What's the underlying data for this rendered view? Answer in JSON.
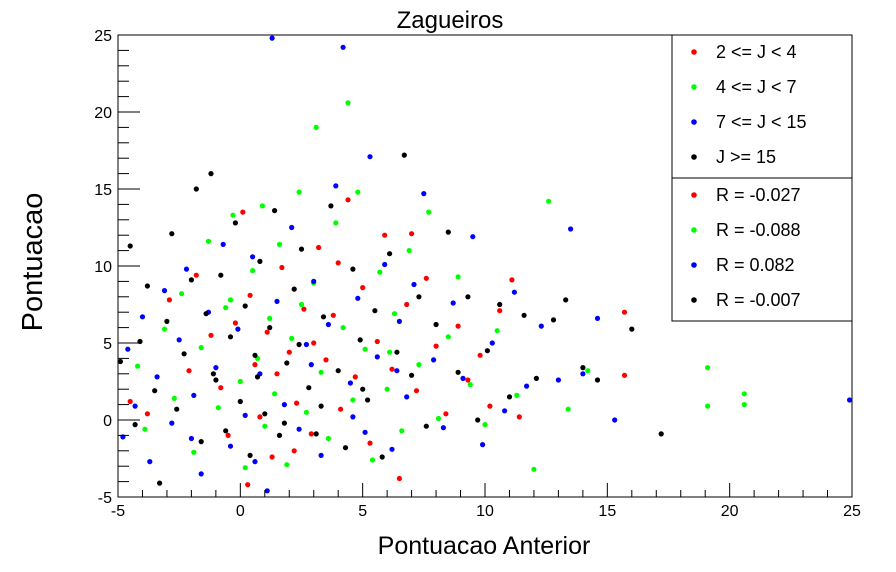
{
  "chart_data": {
    "type": "scatter",
    "title": "Zagueiros",
    "xlabel": "Pontuacao Anterior",
    "ylabel": "Pontuacao",
    "xlim": [
      -5,
      25
    ],
    "ylim": [
      -5,
      25
    ],
    "x_ticks": [
      -5,
      0,
      5,
      10,
      15,
      20,
      25
    ],
    "y_ticks": [
      -5,
      0,
      5,
      10,
      15,
      20,
      25
    ],
    "grid": false,
    "legend_position": "top-right",
    "series": [
      {
        "name": "2 <= J < 4",
        "color": "#ff0000",
        "points": [
          [
            -4.5,
            1.2
          ],
          [
            -3.8,
            0.4
          ],
          [
            -2.9,
            7.8
          ],
          [
            -2.1,
            3.2
          ],
          [
            -1.8,
            9.4
          ],
          [
            -1.2,
            5.5
          ],
          [
            -0.8,
            2.1
          ],
          [
            -0.5,
            -1.0
          ],
          [
            -0.2,
            6.3
          ],
          [
            0.1,
            13.5
          ],
          [
            0.3,
            -4.2
          ],
          [
            0.4,
            8.1
          ],
          [
            0.6,
            3.6
          ],
          [
            0.8,
            0.2
          ],
          [
            1.1,
            5.7
          ],
          [
            1.3,
            -2.4
          ],
          [
            1.7,
            9.9
          ],
          [
            2.0,
            4.4
          ],
          [
            2.3,
            1.1
          ],
          [
            2.6,
            7.2
          ],
          [
            2.9,
            -0.9
          ],
          [
            3.2,
            11.2
          ],
          [
            3.5,
            3.9
          ],
          [
            3.8,
            6.8
          ],
          [
            4.1,
            0.7
          ],
          [
            4.4,
            14.3
          ],
          [
            4.7,
            2.8
          ],
          [
            5.0,
            8.6
          ],
          [
            5.3,
            -1.5
          ],
          [
            5.6,
            5.1
          ],
          [
            5.9,
            12.0
          ],
          [
            6.2,
            3.3
          ],
          [
            6.5,
            -3.8
          ],
          [
            6.8,
            7.5
          ],
          [
            7.2,
            1.9
          ],
          [
            7.6,
            9.2
          ],
          [
            8.0,
            4.8
          ],
          [
            8.4,
            0.4
          ],
          [
            8.9,
            6.1
          ],
          [
            9.3,
            2.6
          ],
          [
            9.8,
            4.2
          ],
          [
            10.2,
            0.9
          ],
          [
            10.6,
            7.1
          ],
          [
            11.1,
            9.1
          ],
          [
            11.4,
            0.2
          ],
          [
            15.7,
            7.0
          ],
          [
            15.7,
            2.9
          ],
          [
            3.0,
            5.0
          ],
          [
            1.5,
            3.0
          ],
          [
            4.0,
            10.2
          ],
          [
            7.0,
            12.1
          ],
          [
            2.2,
            -2.0
          ]
        ]
      },
      {
        "name": "4 <= J < 7",
        "color": "#00ff00",
        "points": [
          [
            -4.2,
            3.5
          ],
          [
            -3.9,
            -0.6
          ],
          [
            -3.1,
            5.9
          ],
          [
            -2.7,
            1.4
          ],
          [
            -2.4,
            8.2
          ],
          [
            -1.9,
            -2.1
          ],
          [
            -1.6,
            4.7
          ],
          [
            -1.3,
            11.6
          ],
          [
            -0.9,
            0.8
          ],
          [
            -0.6,
            7.3
          ],
          [
            -0.3,
            13.3
          ],
          [
            0.0,
            2.5
          ],
          [
            0.2,
            -3.1
          ],
          [
            0.5,
            9.7
          ],
          [
            0.7,
            4.0
          ],
          [
            1.0,
            -0.4
          ],
          [
            1.2,
            6.6
          ],
          [
            1.4,
            1.7
          ],
          [
            1.6,
            11.4
          ],
          [
            1.9,
            -2.9
          ],
          [
            2.1,
            5.3
          ],
          [
            2.4,
            14.8
          ],
          [
            2.7,
            0.5
          ],
          [
            3.0,
            8.9
          ],
          [
            3.1,
            19.0
          ],
          [
            3.3,
            3.1
          ],
          [
            3.6,
            -1.2
          ],
          [
            3.9,
            12.8
          ],
          [
            4.2,
            6.0
          ],
          [
            4.4,
            20.6
          ],
          [
            4.6,
            1.3
          ],
          [
            4.8,
            14.8
          ],
          [
            5.1,
            4.6
          ],
          [
            5.4,
            -2.6
          ],
          [
            5.7,
            9.6
          ],
          [
            6.0,
            2.0
          ],
          [
            6.3,
            6.9
          ],
          [
            6.6,
            -0.7
          ],
          [
            6.9,
            11.0
          ],
          [
            7.3,
            3.6
          ],
          [
            7.7,
            13.5
          ],
          [
            8.1,
            0.1
          ],
          [
            8.5,
            5.4
          ],
          [
            8.9,
            9.3
          ],
          [
            9.4,
            2.3
          ],
          [
            10.0,
            -0.3
          ],
          [
            10.5,
            5.8
          ],
          [
            11.3,
            1.6
          ],
          [
            12.0,
            -3.2
          ],
          [
            12.6,
            14.2
          ],
          [
            13.4,
            0.7
          ],
          [
            14.2,
            3.2
          ],
          [
            19.1,
            3.4
          ],
          [
            19.1,
            0.9
          ],
          [
            20.6,
            1.7
          ],
          [
            20.6,
            1.0
          ],
          [
            0.9,
            13.9
          ],
          [
            -0.4,
            7.8
          ],
          [
            2.5,
            7.5
          ],
          [
            6.1,
            4.4
          ]
        ]
      },
      {
        "name": "7 <= J < 15",
        "color": "#0000ff",
        "points": [
          [
            -4.8,
            -1.1
          ],
          [
            -4.6,
            4.6
          ],
          [
            -4.3,
            0.9
          ],
          [
            -4.0,
            6.7
          ],
          [
            -3.7,
            -2.7
          ],
          [
            -3.4,
            2.8
          ],
          [
            -3.1,
            8.4
          ],
          [
            -2.8,
            -0.2
          ],
          [
            -2.5,
            5.2
          ],
          [
            -2.2,
            9.8
          ],
          [
            -1.9,
            1.6
          ],
          [
            -1.6,
            -3.5
          ],
          [
            -1.3,
            7.0
          ],
          [
            -1.0,
            3.4
          ],
          [
            -0.7,
            11.4
          ],
          [
            -0.4,
            -1.7
          ],
          [
            -0.1,
            5.9
          ],
          [
            0.2,
            0.3
          ],
          [
            0.5,
            10.6
          ],
          [
            0.8,
            3.0
          ],
          [
            1.1,
            -4.6
          ],
          [
            1.3,
            24.8
          ],
          [
            1.5,
            7.7
          ],
          [
            1.8,
            1.0
          ],
          [
            2.1,
            12.5
          ],
          [
            2.4,
            -0.6
          ],
          [
            2.7,
            4.9
          ],
          [
            3.0,
            9.0
          ],
          [
            3.3,
            -2.3
          ],
          [
            3.6,
            6.2
          ],
          [
            3.9,
            15.2
          ],
          [
            4.2,
            24.2
          ],
          [
            4.5,
            2.4
          ],
          [
            4.8,
            7.9
          ],
          [
            5.1,
            -0.8
          ],
          [
            5.3,
            17.1
          ],
          [
            5.6,
            4.1
          ],
          [
            5.9,
            10.1
          ],
          [
            6.2,
            -1.9
          ],
          [
            6.5,
            6.4
          ],
          [
            6.8,
            1.5
          ],
          [
            7.1,
            8.8
          ],
          [
            7.5,
            14.7
          ],
          [
            7.9,
            3.9
          ],
          [
            8.3,
            -0.5
          ],
          [
            8.7,
            7.6
          ],
          [
            9.1,
            2.7
          ],
          [
            9.5,
            11.9
          ],
          [
            9.9,
            -1.6
          ],
          [
            10.3,
            5.0
          ],
          [
            10.8,
            0.6
          ],
          [
            11.2,
            8.3
          ],
          [
            11.7,
            2.2
          ],
          [
            12.3,
            6.1
          ],
          [
            13.0,
            2.6
          ],
          [
            13.5,
            12.4
          ],
          [
            14.0,
            3.0
          ],
          [
            14.6,
            6.6
          ],
          [
            15.3,
            0.0
          ],
          [
            24.9,
            1.3
          ],
          [
            0.6,
            -2.7
          ],
          [
            2.9,
            3.6
          ],
          [
            4.6,
            0.2
          ],
          [
            6.4,
            3.2
          ],
          [
            -2.0,
            -1.2
          ]
        ]
      },
      {
        "name": "J >= 15",
        "color": "#000000",
        "points": [
          [
            -4.9,
            3.8
          ],
          [
            -4.5,
            11.3
          ],
          [
            -4.3,
            -0.3
          ],
          [
            -4.1,
            5.1
          ],
          [
            -3.8,
            8.7
          ],
          [
            -3.5,
            1.9
          ],
          [
            -3.3,
            -4.1
          ],
          [
            -3.0,
            6.4
          ],
          [
            -2.8,
            12.1
          ],
          [
            -2.6,
            0.7
          ],
          [
            -2.3,
            4.3
          ],
          [
            -2.0,
            9.1
          ],
          [
            -1.8,
            15.0
          ],
          [
            -1.6,
            -1.4
          ],
          [
            -1.4,
            6.9
          ],
          [
            -1.2,
            16.0
          ],
          [
            -1.0,
            2.6
          ],
          [
            -0.8,
            9.4
          ],
          [
            -0.6,
            -0.7
          ],
          [
            -0.4,
            5.4
          ],
          [
            -0.2,
            12.8
          ],
          [
            0.0,
            1.2
          ],
          [
            0.2,
            7.4
          ],
          [
            0.4,
            -2.3
          ],
          [
            0.6,
            4.2
          ],
          [
            0.8,
            10.3
          ],
          [
            1.0,
            0.4
          ],
          [
            1.2,
            6.0
          ],
          [
            1.4,
            13.6
          ],
          [
            1.6,
            -1.0
          ],
          [
            1.9,
            3.7
          ],
          [
            2.2,
            8.5
          ],
          [
            2.5,
            11.1
          ],
          [
            2.8,
            2.1
          ],
          [
            3.1,
            -0.9
          ],
          [
            3.4,
            6.7
          ],
          [
            3.7,
            13.9
          ],
          [
            4.0,
            3.2
          ],
          [
            4.3,
            -1.8
          ],
          [
            4.6,
            9.8
          ],
          [
            4.9,
            5.2
          ],
          [
            5.2,
            1.3
          ],
          [
            5.5,
            7.1
          ],
          [
            5.8,
            -2.4
          ],
          [
            6.1,
            10.8
          ],
          [
            6.4,
            4.4
          ],
          [
            6.7,
            17.2
          ],
          [
            7.0,
            2.9
          ],
          [
            7.3,
            8.0
          ],
          [
            7.6,
            -0.4
          ],
          [
            8.0,
            6.2
          ],
          [
            8.5,
            12.2
          ],
          [
            8.9,
            3.1
          ],
          [
            9.3,
            8.0
          ],
          [
            9.7,
            0.0
          ],
          [
            10.1,
            4.5
          ],
          [
            10.6,
            7.5
          ],
          [
            11.0,
            1.5
          ],
          [
            11.6,
            6.8
          ],
          [
            12.1,
            2.7
          ],
          [
            12.8,
            6.5
          ],
          [
            13.3,
            7.8
          ],
          [
            14.0,
            3.4
          ],
          [
            14.6,
            2.6
          ],
          [
            16.0,
            5.9
          ],
          [
            17.2,
            -0.9
          ],
          [
            0.7,
            2.8
          ],
          [
            2.4,
            4.9
          ],
          [
            5.0,
            2.0
          ],
          [
            3.3,
            0.9
          ],
          [
            -1.1,
            3.0
          ],
          [
            1.8,
            -0.2
          ]
        ]
      }
    ],
    "stats_legend": [
      {
        "label": "R = -0.027",
        "color": "#ff0000"
      },
      {
        "label": "R = -0.088",
        "color": "#00ff00"
      },
      {
        "label": "R = 0.082",
        "color": "#0000ff"
      },
      {
        "label": "R = -0.007",
        "color": "#000000"
      }
    ]
  }
}
